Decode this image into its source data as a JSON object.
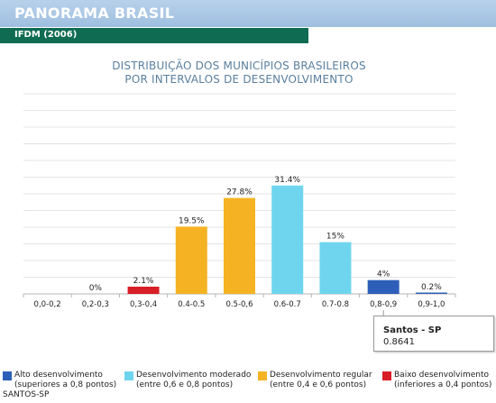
{
  "header": {
    "title": "PANORAMA BRASIL",
    "subtitle": "IFDM (2006)"
  },
  "chart_data": {
    "type": "bar",
    "title_line1": "DISTRIBUIÇÃO DOS MUNICÍPIOS BRASILEIROS",
    "title_line2": "POR INTERVALOS DE DESENVOLVIMENTO",
    "categories": [
      "0,0-0,2",
      "0,2-0,3",
      "0,3-0,4",
      "0.4-0.5",
      "0.5-0,6",
      "0.6-0.7",
      "0.7-0.8",
      "0,8-0,9",
      "0,9-1,0"
    ],
    "values": [
      0,
      0,
      2.1,
      19.5,
      27.8,
      31.4,
      15,
      4,
      0.2
    ],
    "data_labels": [
      "",
      "0%",
      "2.1%",
      "19.5%",
      "27.8%",
      "31.4%",
      "15%",
      "4%",
      "0.2%"
    ],
    "bar_colors": [
      "#2e5fb8",
      "#2e5fb8",
      "#d81f26",
      "#f5b323",
      "#f5b323",
      "#6fd5ee",
      "#6fd5ee",
      "#2e5fb8",
      "#2e5fb8"
    ],
    "ylim": [
      0,
      58
    ],
    "grid": true,
    "legend_position": "bottom"
  },
  "tooltip": {
    "label": "Santos - SP",
    "value": "0.8641"
  },
  "legend": [
    {
      "line1": "Alto desenvolvimento",
      "line2": "(superiores a 0,8 pontos)",
      "color": "#2e5fb8"
    },
    {
      "line1": "Desenvolvimento moderado",
      "line2": "(entre 0,6 e 0,8 pontos)",
      "color": "#6fd5ee"
    },
    {
      "line1": "Desenvolvimento regular",
      "line2": "(entre 0,4 e 0,6 pontos)",
      "color": "#f5b323"
    },
    {
      "line1": "Baixo desenvolvimento",
      "line2": "(inferiores a 0,4 pontos)",
      "color": "#d81f26"
    }
  ],
  "selected_city": "SANTOS-SP"
}
